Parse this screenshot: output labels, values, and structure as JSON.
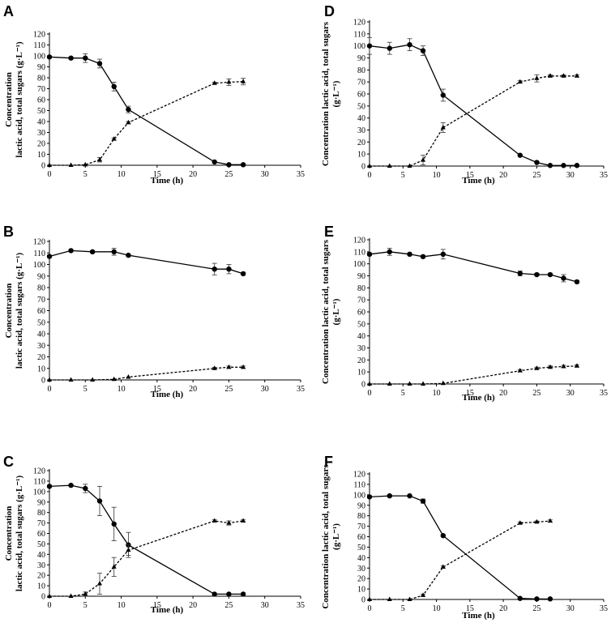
{
  "figure": {
    "description_layout": "six panels"
  },
  "chart_data": [
    {
      "panel": "A",
      "type": "line",
      "xlabel": "Time (h)",
      "ylabel_lines": [
        "Concentration",
        "lactic acid, total sugars (g·L⁻¹)"
      ],
      "xlim": [
        0,
        35
      ],
      "ylim": [
        0,
        120
      ],
      "xticks": [
        0,
        5,
        10,
        15,
        20,
        25,
        30,
        35
      ],
      "yticks": [
        0,
        10,
        20,
        30,
        40,
        50,
        60,
        70,
        80,
        90,
        100,
        110,
        120
      ],
      "series": [
        {
          "name": "total sugars",
          "marker": "circle",
          "style": "solid",
          "x": [
            0,
            3,
            5,
            7,
            9,
            11,
            23,
            25,
            27
          ],
          "y": [
            99,
            98,
            98,
            93,
            72,
            51,
            3,
            0.5,
            0.5
          ],
          "err": [
            1,
            1,
            4,
            4,
            4,
            3,
            0,
            0,
            0
          ]
        },
        {
          "name": "lactic acid",
          "marker": "triangle",
          "style": "dashed",
          "x": [
            0,
            3,
            5,
            7,
            9,
            11,
            23,
            25,
            27
          ],
          "y": [
            0,
            0,
            0.5,
            5,
            24,
            39,
            75,
            76,
            76.5
          ],
          "err": [
            0,
            0,
            0,
            2,
            1,
            1,
            1,
            3,
            3
          ]
        }
      ]
    },
    {
      "panel": "B",
      "type": "line",
      "xlabel": "Time (h)",
      "ylabel_lines": [
        "Concentration",
        "lactic acid, total sugars (g·L⁻¹)"
      ],
      "xlim": [
        0,
        35
      ],
      "ylim": [
        0,
        120
      ],
      "xticks": [
        0,
        5,
        10,
        15,
        20,
        25,
        30,
        35
      ],
      "yticks": [
        0,
        10,
        20,
        30,
        40,
        50,
        60,
        70,
        80,
        90,
        100,
        110,
        120
      ],
      "series": [
        {
          "name": "total sugars",
          "marker": "circle",
          "style": "solid",
          "x": [
            0,
            3,
            6,
            9,
            11,
            23,
            25,
            27
          ],
          "y": [
            107,
            112,
            111,
            111,
            108,
            96,
            96,
            92
          ],
          "err": [
            1,
            1,
            1,
            3,
            1,
            5,
            4,
            1
          ]
        },
        {
          "name": "lactic acid",
          "marker": "triangle",
          "style": "dashed",
          "x": [
            0,
            3,
            6,
            9,
            11,
            23,
            25,
            27
          ],
          "y": [
            0,
            0,
            0,
            0.5,
            2.5,
            10,
            11,
            11
          ],
          "err": [
            0,
            0,
            0,
            0,
            0,
            1,
            1,
            1
          ]
        }
      ]
    },
    {
      "panel": "C",
      "type": "line",
      "xlabel": "Time (h)",
      "ylabel_lines": [
        "Concentration",
        "lactic acid, total sugars (g·L⁻¹)"
      ],
      "xlim": [
        0,
        35
      ],
      "ylim": [
        0,
        120
      ],
      "xticks": [
        0,
        5,
        10,
        15,
        20,
        25,
        30,
        35
      ],
      "yticks": [
        0,
        10,
        20,
        30,
        40,
        50,
        60,
        70,
        80,
        90,
        100,
        110,
        120
      ],
      "series": [
        {
          "name": "total sugars",
          "marker": "circle",
          "style": "solid",
          "x": [
            0,
            3,
            5,
            7,
            9,
            11,
            23,
            25,
            27
          ],
          "y": [
            105,
            106,
            103,
            91,
            69,
            49,
            2,
            2,
            2
          ],
          "err": [
            1,
            1,
            4,
            14,
            16,
            12,
            0,
            0,
            0
          ]
        },
        {
          "name": "lactic acid",
          "marker": "triangle",
          "style": "dashed",
          "x": [
            0,
            3,
            5,
            7,
            9,
            11,
            23,
            25,
            27
          ],
          "y": [
            0,
            0,
            2,
            12,
            28,
            44,
            72,
            70,
            72
          ],
          "err": [
            0,
            0,
            2,
            10,
            9,
            5,
            1,
            2,
            1
          ]
        }
      ]
    },
    {
      "panel": "D",
      "type": "line",
      "xlabel": "Time (h)",
      "ylabel_lines": [
        "Concentration lactic acid, total sugars",
        "(g·L⁻¹)"
      ],
      "xlim": [
        0,
        35
      ],
      "ylim": [
        0,
        120
      ],
      "xticks": [
        0,
        5,
        10,
        15,
        20,
        25,
        30,
        35
      ],
      "yticks": [
        0,
        10,
        20,
        30,
        40,
        50,
        60,
        70,
        80,
        90,
        100,
        110,
        120
      ],
      "series": [
        {
          "name": "total sugars",
          "marker": "circle",
          "style": "solid",
          "x": [
            0,
            3,
            6,
            8,
            11,
            22.5,
            25,
            27,
            29,
            31
          ],
          "y": [
            100,
            98,
            101,
            96,
            59,
            9,
            3,
            0.5,
            0.5,
            0.5
          ],
          "err": [
            7,
            5,
            5,
            4,
            5,
            0,
            0,
            0,
            0,
            0
          ]
        },
        {
          "name": "lactic acid",
          "marker": "triangle",
          "style": "dashed",
          "x": [
            0,
            3,
            6,
            8,
            11,
            22.5,
            25,
            27,
            29,
            31
          ],
          "y": [
            0,
            0,
            0,
            5,
            32,
            70,
            73,
            75,
            75,
            75
          ],
          "err": [
            0,
            0,
            0,
            4,
            4,
            1,
            3,
            1,
            1,
            1
          ]
        }
      ]
    },
    {
      "panel": "E",
      "type": "line",
      "xlabel": "Time (h)",
      "ylabel_lines": [
        "Concentration lactic acid, total sugars",
        "(g·L⁻¹)"
      ],
      "xlim": [
        0,
        35
      ],
      "ylim": [
        0,
        120
      ],
      "xticks": [
        0,
        5,
        10,
        15,
        20,
        25,
        30,
        35
      ],
      "yticks": [
        0,
        10,
        20,
        30,
        40,
        50,
        60,
        70,
        80,
        90,
        100,
        110,
        120
      ],
      "series": [
        {
          "name": "total sugars",
          "marker": "circle",
          "style": "solid",
          "x": [
            0,
            3,
            6,
            8,
            11,
            22.5,
            25,
            27,
            29,
            31
          ],
          "y": [
            108,
            110,
            108,
            106,
            108,
            92,
            91,
            91,
            88,
            85
          ],
          "err": [
            1,
            3,
            1,
            1,
            4,
            2,
            1,
            1,
            3,
            1
          ]
        },
        {
          "name": "lactic acid",
          "marker": "triangle",
          "style": "dashed",
          "x": [
            0,
            3,
            6,
            8,
            11,
            22.5,
            25,
            27,
            29,
            31
          ],
          "y": [
            0,
            0,
            0,
            0,
            0.5,
            11,
            13,
            14,
            14.5,
            15
          ],
          "err": [
            0,
            0,
            0,
            0,
            0,
            1,
            1,
            1,
            1,
            1
          ]
        }
      ]
    },
    {
      "panel": "F",
      "type": "line",
      "xlabel": "Time (h)",
      "ylabel_lines": [
        "Concentration lactic acid, total sugars",
        "(g·L⁻¹)"
      ],
      "xlim": [
        0,
        35
      ],
      "ylim": [
        0,
        120
      ],
      "xticks": [
        0,
        5,
        10,
        15,
        20,
        25,
        30,
        35
      ],
      "yticks": [
        0,
        10,
        20,
        30,
        40,
        50,
        60,
        70,
        80,
        90,
        100,
        110,
        120
      ],
      "series": [
        {
          "name": "total sugars",
          "marker": "circle",
          "style": "solid",
          "x": [
            0,
            3,
            6,
            8,
            11,
            22.5,
            25,
            27
          ],
          "y": [
            98,
            99,
            99,
            94,
            61,
            1,
            0.5,
            0.5
          ],
          "err": [
            1,
            1,
            1,
            2,
            1,
            0,
            0,
            0
          ]
        },
        {
          "name": "lactic acid",
          "marker": "triangle",
          "style": "dashed",
          "x": [
            0,
            3,
            6,
            8,
            11,
            22.5,
            25,
            27
          ],
          "y": [
            0,
            0,
            0,
            4,
            31,
            73,
            74,
            75
          ],
          "err": [
            0,
            0,
            0,
            1,
            1,
            1,
            1,
            1
          ]
        }
      ]
    }
  ]
}
